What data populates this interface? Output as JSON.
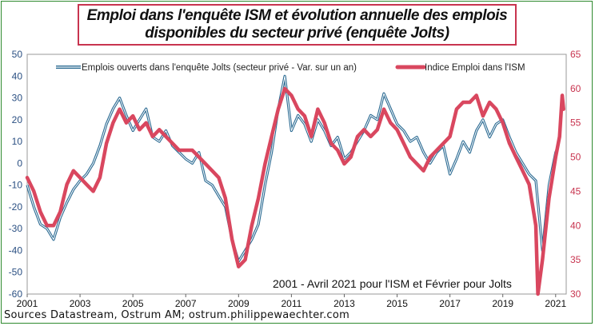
{
  "chart_data": {
    "type": "line",
    "title_line1": "Emploi dans l'enquête ISM et évolution annuelle des emplois",
    "title_line2": "disponibles du secteur privé (enquête Jolts)",
    "x_ticks": [
      "2001",
      "2003",
      "2005",
      "2007",
      "2009",
      "2011",
      "2013",
      "2015",
      "2017",
      "2019",
      "2021"
    ],
    "xlim": [
      2001,
      2021.4
    ],
    "left_axis": {
      "ticks": [
        50,
        40,
        30,
        20,
        10,
        0,
        -10,
        -20,
        -30,
        -40,
        -50,
        -60
      ],
      "ylim": [
        -60,
        50
      ],
      "color": "#2a4f82"
    },
    "right_axis": {
      "ticks": [
        65,
        60,
        55,
        50,
        45,
        40,
        35,
        30
      ],
      "ylim": [
        30,
        65
      ],
      "color": "#c8344f"
    },
    "annotation": "2001 - Avril 2021 pour l'ISM  et Février pour Jolts",
    "grid": false,
    "legend_position": "top",
    "series": [
      {
        "name": "Emplois ouverts dans l'enquête Jolts (secteur privé - Var. sur un an)",
        "axis": "left",
        "color": "#2a6a92",
        "style": "double-line",
        "x": [
          2001.0,
          2001.25,
          2001.5,
          2001.75,
          2002.0,
          2002.25,
          2002.5,
          2002.75,
          2003.0,
          2003.25,
          2003.5,
          2003.75,
          2004.0,
          2004.25,
          2004.5,
          2004.75,
          2005.0,
          2005.25,
          2005.5,
          2005.75,
          2006.0,
          2006.25,
          2006.5,
          2006.75,
          2007.0,
          2007.25,
          2007.5,
          2007.75,
          2008.0,
          2008.25,
          2008.5,
          2008.75,
          2009.0,
          2009.25,
          2009.5,
          2009.75,
          2010.0,
          2010.25,
          2010.5,
          2010.75,
          2011.0,
          2011.25,
          2011.5,
          2011.75,
          2012.0,
          2012.25,
          2012.5,
          2012.75,
          2013.0,
          2013.25,
          2013.5,
          2013.75,
          2014.0,
          2014.25,
          2014.5,
          2014.75,
          2015.0,
          2015.25,
          2015.5,
          2015.75,
          2016.0,
          2016.25,
          2016.5,
          2016.75,
          2017.0,
          2017.25,
          2017.5,
          2017.75,
          2018.0,
          2018.25,
          2018.5,
          2018.75,
          2019.0,
          2019.25,
          2019.5,
          2019.75,
          2020.0,
          2020.25,
          2020.5,
          2020.75,
          2021.0,
          2021.1
        ],
        "values": [
          -10,
          -20,
          -28,
          -30,
          -35,
          -25,
          -18,
          -12,
          -8,
          -5,
          0,
          8,
          18,
          25,
          30,
          22,
          15,
          20,
          25,
          12,
          10,
          15,
          8,
          5,
          2,
          0,
          5,
          -8,
          -10,
          -15,
          -20,
          -35,
          -45,
          -40,
          -35,
          -28,
          -10,
          5,
          25,
          40,
          15,
          22,
          18,
          10,
          20,
          15,
          8,
          12,
          2,
          5,
          10,
          15,
          22,
          20,
          32,
          25,
          18,
          15,
          10,
          12,
          5,
          0,
          5,
          8,
          -5,
          2,
          10,
          5,
          15,
          20,
          12,
          18,
          20,
          12,
          5,
          0,
          -5,
          -8,
          -40,
          -10,
          5,
          8
        ]
      },
      {
        "name": "Indice Emploi dans l'ISM",
        "axis": "right",
        "color": "#d9475f",
        "style": "thick-line",
        "x": [
          2001.0,
          2001.25,
          2001.5,
          2001.75,
          2002.0,
          2002.25,
          2002.5,
          2002.75,
          2003.0,
          2003.25,
          2003.5,
          2003.75,
          2004.0,
          2004.25,
          2004.5,
          2004.75,
          2005.0,
          2005.25,
          2005.5,
          2005.75,
          2006.0,
          2006.25,
          2006.5,
          2006.75,
          2007.0,
          2007.25,
          2007.5,
          2007.75,
          2008.0,
          2008.25,
          2008.5,
          2008.75,
          2009.0,
          2009.25,
          2009.5,
          2009.75,
          2010.0,
          2010.25,
          2010.5,
          2010.75,
          2011.0,
          2011.25,
          2011.5,
          2011.75,
          2012.0,
          2012.25,
          2012.5,
          2012.75,
          2013.0,
          2013.25,
          2013.5,
          2013.75,
          2014.0,
          2014.25,
          2014.5,
          2014.75,
          2015.0,
          2015.25,
          2015.5,
          2015.75,
          2016.0,
          2016.25,
          2016.5,
          2016.75,
          2017.0,
          2017.25,
          2017.5,
          2017.75,
          2018.0,
          2018.25,
          2018.5,
          2018.75,
          2019.0,
          2019.25,
          2019.5,
          2019.75,
          2020.0,
          2020.25,
          2020.33,
          2020.5,
          2020.75,
          2021.0,
          2021.15,
          2021.25,
          2021.3
        ],
        "values": [
          47,
          45,
          42,
          40,
          40,
          42,
          46,
          48,
          47,
          46,
          45,
          47,
          52,
          55,
          57,
          55,
          56,
          54,
          55,
          53,
          54,
          53,
          52,
          51,
          51,
          51,
          50,
          49,
          48,
          47,
          44,
          38,
          34,
          35,
          40,
          44,
          49,
          53,
          57,
          60,
          59,
          57,
          56,
          53,
          57,
          55,
          52,
          51,
          49,
          50,
          53,
          54,
          53,
          54,
          57,
          55,
          54,
          52,
          50,
          49,
          48,
          50,
          51,
          52,
          53,
          57,
          58,
          58,
          59,
          56,
          58,
          57,
          55,
          52,
          50,
          48,
          46,
          40,
          30,
          35,
          44,
          50,
          53,
          59,
          57
        ]
      }
    ]
  },
  "source_text": "Sources Datastream,  Ostrum AM; ostrum.philippewaechter.com"
}
